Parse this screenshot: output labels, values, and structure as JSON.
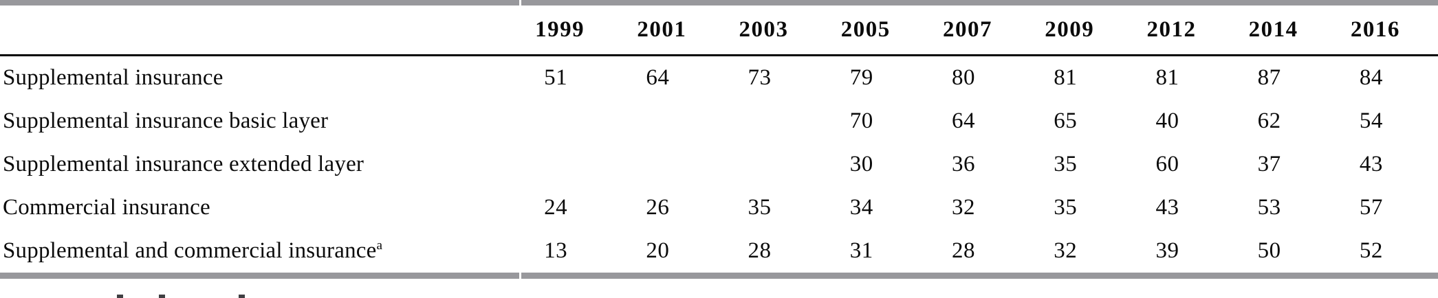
{
  "table": {
    "columns": [
      "1999",
      "2001",
      "2003",
      "2005",
      "2007",
      "2009",
      "2012",
      "2014",
      "2016"
    ],
    "rows": [
      {
        "label": "Supplemental insurance",
        "sup": "",
        "values": [
          "51",
          "64",
          "73",
          "79",
          "80",
          "81",
          "81",
          "87",
          "84"
        ]
      },
      {
        "label": "Supplemental insurance basic layer",
        "sup": "",
        "values": [
          "",
          "",
          "",
          "70",
          "64",
          "65",
          "40",
          "62",
          "54"
        ]
      },
      {
        "label": "Supplemental insurance extended layer",
        "sup": "",
        "values": [
          "",
          "",
          "",
          "30",
          "36",
          "35",
          "60",
          "37",
          "43"
        ]
      },
      {
        "label": "Commercial insurance",
        "sup": "",
        "values": [
          "24",
          "26",
          "35",
          "34",
          "32",
          "35",
          "43",
          "53",
          "57"
        ]
      },
      {
        "label": "Supplemental and commercial insurance",
        "sup": "a",
        "values": [
          "13",
          "20",
          "28",
          "31",
          "28",
          "32",
          "39",
          "50",
          "52"
        ]
      }
    ],
    "colors": {
      "bar_gray": "#98989c",
      "rule_black": "#000000",
      "background": "#ffffff",
      "text": "#0b0b0b"
    }
  },
  "chart_data": {
    "type": "table",
    "categories": [
      "1999",
      "2001",
      "2003",
      "2005",
      "2007",
      "2009",
      "2012",
      "2014",
      "2016"
    ],
    "series": [
      {
        "name": "Supplemental insurance",
        "values": [
          51,
          64,
          73,
          79,
          80,
          81,
          81,
          87,
          84
        ]
      },
      {
        "name": "Supplemental insurance basic layer",
        "values": [
          null,
          null,
          null,
          70,
          64,
          65,
          40,
          62,
          54
        ]
      },
      {
        "name": "Supplemental insurance extended layer",
        "values": [
          null,
          null,
          null,
          30,
          36,
          35,
          60,
          37,
          43
        ]
      },
      {
        "name": "Commercial insurance",
        "values": [
          24,
          26,
          35,
          34,
          32,
          35,
          43,
          53,
          57
        ]
      },
      {
        "name": "Supplemental and commercial insurance (a)",
        "values": [
          13,
          20,
          28,
          31,
          28,
          32,
          39,
          50,
          52
        ]
      }
    ],
    "title": "",
    "xlabel": "",
    "ylabel": ""
  }
}
